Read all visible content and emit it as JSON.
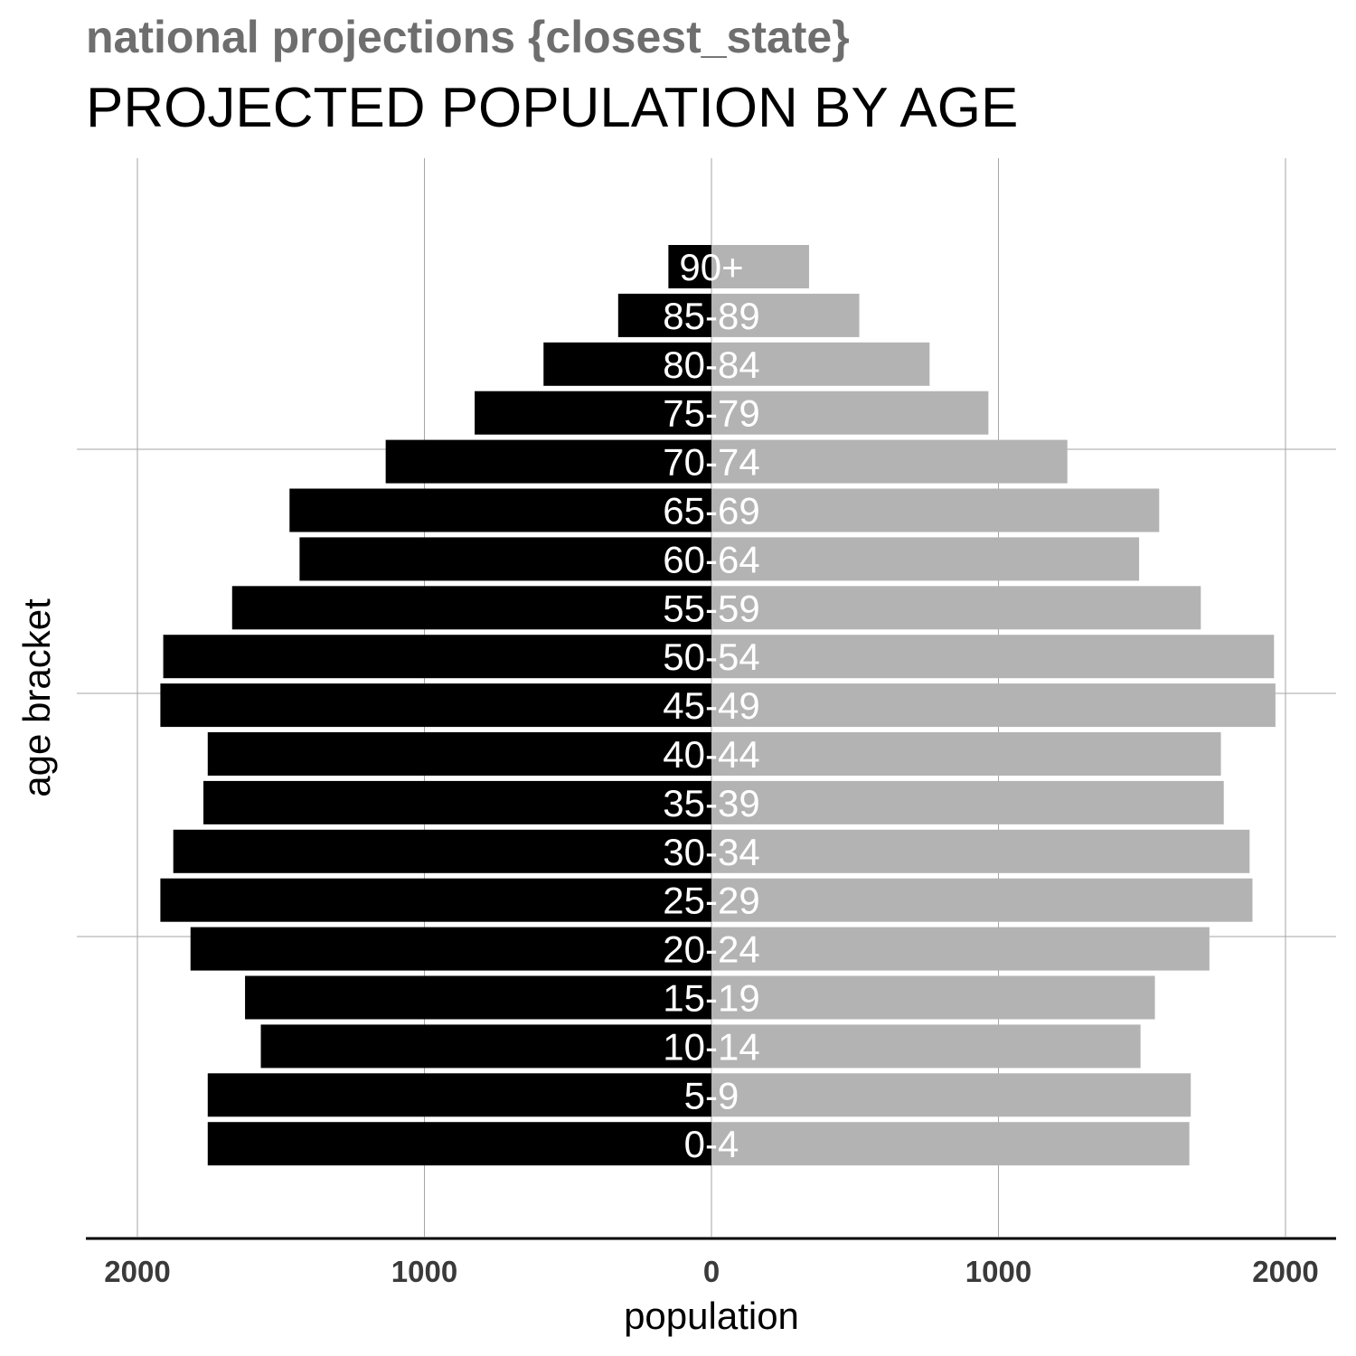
{
  "chart_data": {
    "type": "bar",
    "orientation": "horizontal",
    "subtitle": "national projections {closest_state}",
    "title": "PROJECTED POPULATION BY AGE",
    "xlabel": "population",
    "ylabel": "age bracket",
    "xlim": [
      -2200,
      2200
    ],
    "x_ticks": [
      -2000,
      -1000,
      0,
      1000,
      2000
    ],
    "x_tick_labels": [
      "2000",
      "1000",
      "0",
      "1000",
      "2000"
    ],
    "grid": true,
    "categories": [
      "0-4",
      "5-9",
      "10-14",
      "15-19",
      "20-24",
      "25-29",
      "30-34",
      "35-39",
      "40-44",
      "45-49",
      "50-54",
      "55-59",
      "60-64",
      "65-69",
      "70-74",
      "75-79",
      "80-84",
      "85-89",
      "90+"
    ],
    "series": [
      {
        "color": "#000000",
        "values": [
          1755,
          1755,
          1570,
          1625,
          1815,
          1920,
          1875,
          1770,
          1755,
          1920,
          1910,
          1670,
          1435,
          1470,
          1135,
          825,
          585,
          325,
          150
        ]
      },
      {
        "color": "#b3b3b3",
        "values": [
          1665,
          1670,
          1495,
          1545,
          1735,
          1885,
          1875,
          1785,
          1775,
          1965,
          1960,
          1705,
          1490,
          1560,
          1240,
          965,
          760,
          515,
          340
        ]
      }
    ]
  }
}
